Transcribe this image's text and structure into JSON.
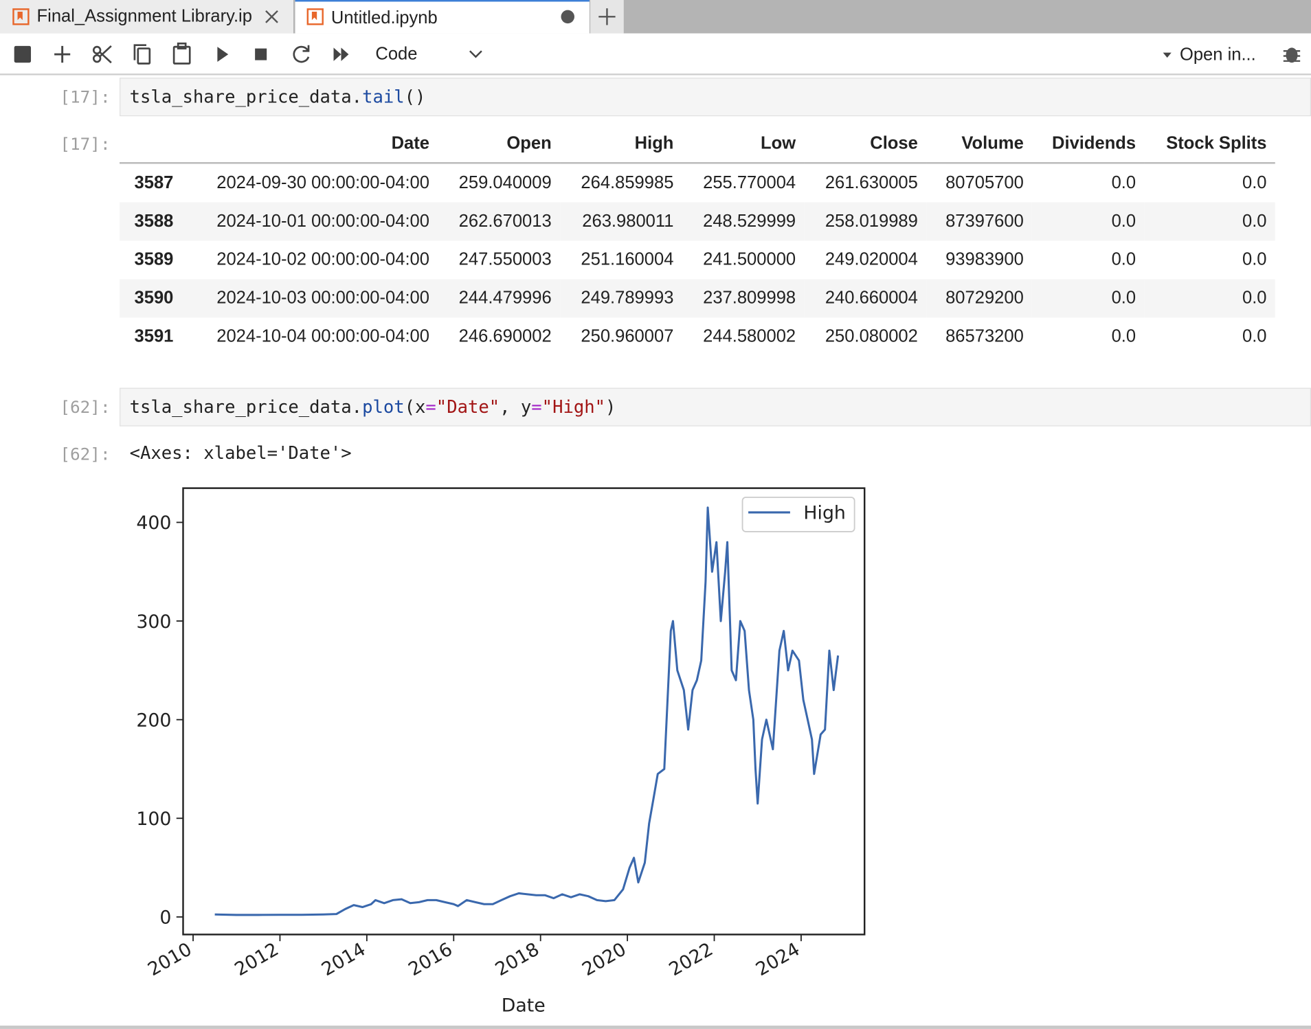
{
  "tabs": [
    {
      "label": "Final_Assignment Library.ip"
    },
    {
      "label": "Untitled.ipynb"
    }
  ],
  "toolbar": {
    "cell_type": "Code",
    "open_in": "Open in..."
  },
  "cells": [
    {
      "prompt": "[17]:",
      "code": [
        "tsla_share_price_data.",
        "tail",
        "()"
      ],
      "output_prompt": "[17]:"
    },
    {
      "prompt": "[62]:",
      "code": [
        "tsla_share_price_data.",
        "plot",
        "(x",
        "=",
        "\"Date\"",
        ", y",
        "=",
        "\"High\"",
        ")"
      ],
      "output_prompt": "[62]:",
      "output_text": "<Axes: xlabel='Date'>"
    }
  ],
  "table": {
    "columns": [
      "Date",
      "Open",
      "High",
      "Low",
      "Close",
      "Volume",
      "Dividends",
      "Stock Splits"
    ],
    "rows": [
      {
        "index": "3587",
        "cells": [
          "2024-09-30 00:00:00-04:00",
          "259.040009",
          "264.859985",
          "255.770004",
          "261.630005",
          "80705700",
          "0.0",
          "0.0"
        ]
      },
      {
        "index": "3588",
        "cells": [
          "2024-10-01 00:00:00-04:00",
          "262.670013",
          "263.980011",
          "248.529999",
          "258.019989",
          "87397600",
          "0.0",
          "0.0"
        ]
      },
      {
        "index": "3589",
        "cells": [
          "2024-10-02 00:00:00-04:00",
          "247.550003",
          "251.160004",
          "241.500000",
          "249.020004",
          "93983900",
          "0.0",
          "0.0"
        ]
      },
      {
        "index": "3590",
        "cells": [
          "2024-10-03 00:00:00-04:00",
          "244.479996",
          "249.789993",
          "237.809998",
          "240.660004",
          "80729200",
          "0.0",
          "0.0"
        ]
      },
      {
        "index": "3591",
        "cells": [
          "2024-10-04 00:00:00-04:00",
          "246.690002",
          "250.960007",
          "244.580002",
          "250.080002",
          "86573200",
          "0.0",
          "0.0"
        ]
      }
    ]
  },
  "chart_data": {
    "type": "line",
    "xlabel": "Date",
    "x": [
      2010.5,
      2011,
      2011.5,
      2012,
      2012.5,
      2013,
      2013.3,
      2013.5,
      2013.7,
      2013.9,
      2014.1,
      2014.2,
      2014.4,
      2014.6,
      2014.8,
      2015,
      2015.2,
      2015.4,
      2015.6,
      2015.8,
      2016,
      2016.1,
      2016.3,
      2016.5,
      2016.7,
      2016.9,
      2017.1,
      2017.3,
      2017.5,
      2017.7,
      2017.9,
      2018.1,
      2018.3,
      2018.5,
      2018.7,
      2018.9,
      2019.1,
      2019.3,
      2019.5,
      2019.7,
      2019.9,
      2020.05,
      2020.15,
      2020.25,
      2020.4,
      2020.5,
      2020.6,
      2020.7,
      2020.85,
      2021.0,
      2021.05,
      2021.15,
      2021.3,
      2021.4,
      2021.5,
      2021.6,
      2021.7,
      2021.8,
      2021.85,
      2021.95,
      2022.05,
      2022.15,
      2022.25,
      2022.3,
      2022.4,
      2022.5,
      2022.6,
      2022.7,
      2022.8,
      2022.9,
      2022.95,
      2023.0,
      2023.1,
      2023.2,
      2023.35,
      2023.5,
      2023.6,
      2023.7,
      2023.8,
      2023.95,
      2024.05,
      2024.15,
      2024.25,
      2024.3,
      2024.45,
      2024.55,
      2024.65,
      2024.75,
      2024.85
    ],
    "series": [
      {
        "name": "High",
        "color": "#3a68ad",
        "values": [
          2.5,
          2,
          2,
          2.2,
          2.2,
          2.5,
          3,
          8,
          12,
          10,
          13,
          17,
          14,
          17,
          18,
          14,
          15,
          17,
          17,
          15,
          13,
          11,
          17,
          15,
          13,
          13,
          17,
          21,
          24,
          23,
          22,
          22,
          19,
          23,
          20,
          23,
          21,
          17,
          16,
          17,
          28,
          50,
          60,
          35,
          55,
          95,
          120,
          145,
          150,
          290,
          300,
          250,
          230,
          190,
          230,
          240,
          260,
          340,
          415,
          350,
          380,
          300,
          350,
          380,
          250,
          240,
          300,
          290,
          230,
          200,
          150,
          115,
          180,
          200,
          170,
          270,
          290,
          250,
          270,
          260,
          220,
          200,
          180,
          145,
          185,
          190,
          270,
          230,
          265
        ]
      }
    ],
    "xlim": [
      2009.77,
      2025.46
    ],
    "ylim": [
      -17.8,
      434.7
    ],
    "xticks": [
      2010,
      2012,
      2014,
      2016,
      2018,
      2020,
      2022,
      2024
    ],
    "yticks": [
      0,
      100,
      200,
      300,
      400
    ],
    "legend": "upper right",
    "grid": false
  }
}
